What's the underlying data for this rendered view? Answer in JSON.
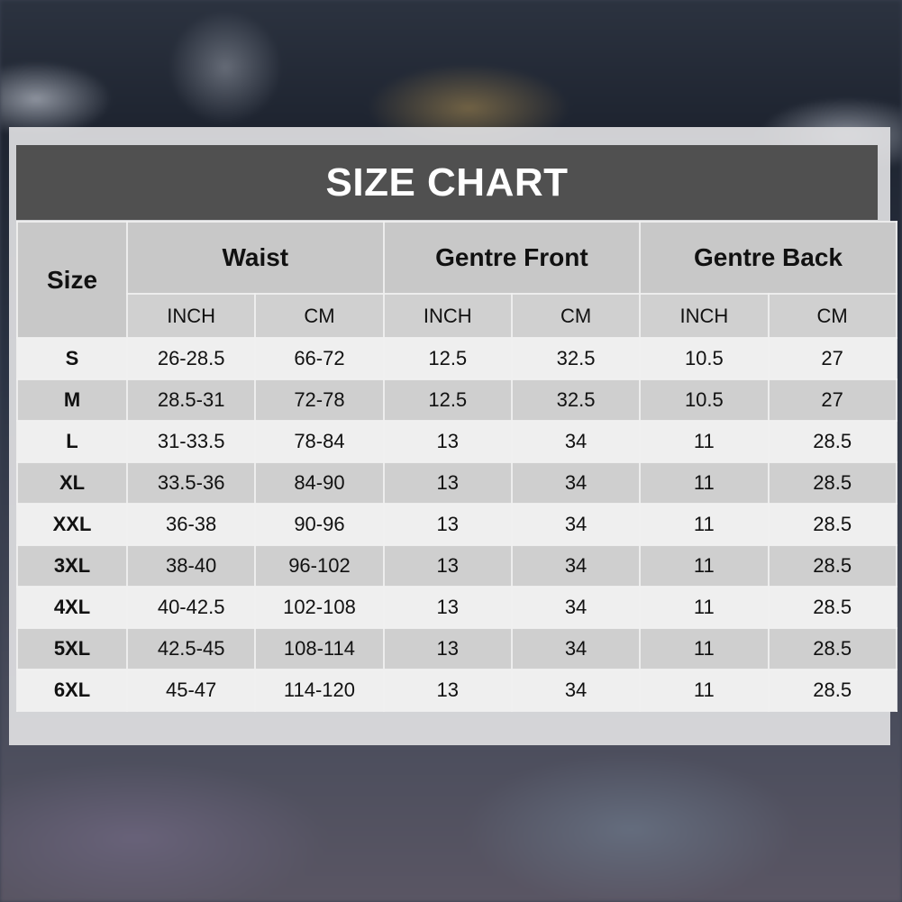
{
  "title": "SIZE CHART",
  "header": {
    "size_label": "Size",
    "groups": [
      "Waist",
      "Gentre Front",
      "Gentre Back"
    ],
    "units": [
      "INCH",
      "CM",
      "INCH",
      "CM",
      "INCH",
      "CM"
    ]
  },
  "rows": [
    {
      "size": "S",
      "cells": [
        "26-28.5",
        "66-72",
        "12.5",
        "32.5",
        "10.5",
        "27"
      ]
    },
    {
      "size": "M",
      "cells": [
        "28.5-31",
        "72-78",
        "12.5",
        "32.5",
        "10.5",
        "27"
      ]
    },
    {
      "size": "L",
      "cells": [
        "31-33.5",
        "78-84",
        "13",
        "34",
        "11",
        "28.5"
      ]
    },
    {
      "size": "XL",
      "cells": [
        "33.5-36",
        "84-90",
        "13",
        "34",
        "11",
        "28.5"
      ]
    },
    {
      "size": "XXL",
      "cells": [
        "36-38",
        "90-96",
        "13",
        "34",
        "11",
        "28.5"
      ]
    },
    {
      "size": "3XL",
      "cells": [
        "38-40",
        "96-102",
        "13",
        "34",
        "11",
        "28.5"
      ]
    },
    {
      "size": "4XL",
      "cells": [
        "40-42.5",
        "102-108",
        "13",
        "34",
        "11",
        "28.5"
      ]
    },
    {
      "size": "5XL",
      "cells": [
        "42.5-45",
        "108-114",
        "13",
        "34",
        "11",
        "28.5"
      ]
    },
    {
      "size": "6XL",
      "cells": [
        "45-47",
        "114-120",
        "13",
        "34",
        "11",
        "28.5"
      ]
    }
  ]
}
